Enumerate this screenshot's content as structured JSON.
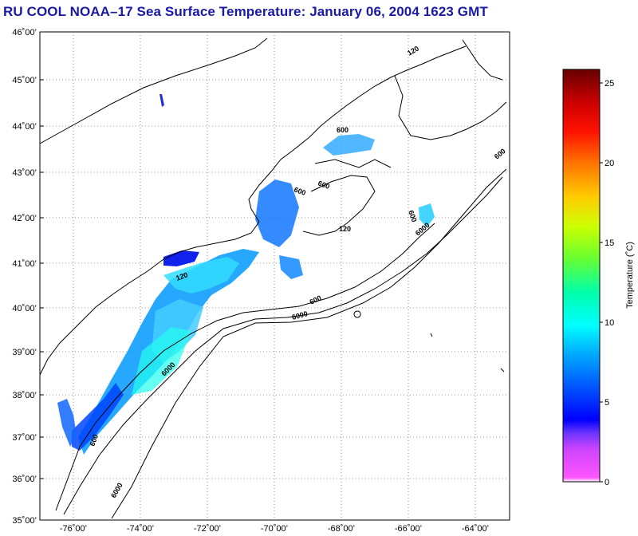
{
  "title": "RU COOL  NOAA–17  Sea Surface Temperature:  January 06, 2004 1623 GMT",
  "map": {
    "lat_range": [
      35,
      46
    ],
    "lon_range": [
      -77,
      -63
    ],
    "lat_labels": [
      "46˚00’",
      "45˚00’",
      "44˚00’",
      "43˚00’",
      "42˚00’",
      "41˚00’",
      "40˚00’",
      "39˚00’",
      "38˚00’",
      "37˚00’",
      "36˚00’",
      "35˚00’"
    ],
    "lon_labels": [
      "-76˚00’",
      "-74˚00’",
      "-72˚00’",
      "-70˚00’",
      "-68˚00’",
      "-66˚00’",
      "-64˚00’"
    ],
    "grid": "dotted",
    "coast_color": "#000000",
    "depth_labels": [
      "120",
      "600",
      "6000"
    ]
  },
  "colorbar": {
    "label": "Temperature (˚C)",
    "ticks": [
      "25",
      "20",
      "15",
      "10",
      "5",
      "0"
    ],
    "range": [
      0,
      26
    ],
    "colors": [
      "#ff66ff",
      "#8020ff",
      "#0000ff",
      "#0066ff",
      "#00ccff",
      "#00ffcc",
      "#66ff66",
      "#ccff00",
      "#ffcc00",
      "#ff6600",
      "#ff0000",
      "#cc0000",
      "#660000"
    ]
  }
}
